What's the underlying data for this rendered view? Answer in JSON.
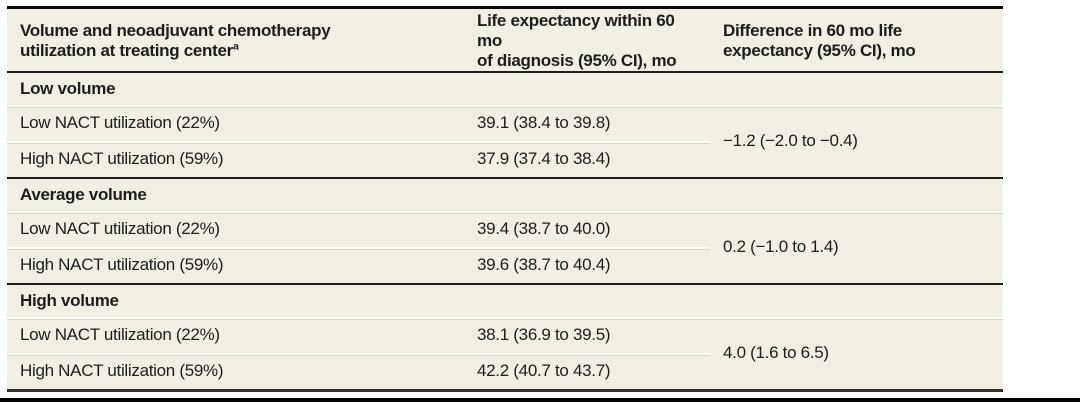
{
  "header": {
    "col1": {
      "line1": "Volume and neoadjuvant chemotherapy",
      "line2": "utilization at treating center",
      "footnote_marker": "a"
    },
    "col2": {
      "line1": "Life expectancy within 60 mo",
      "line2": "of diagnosis (95% CI), mo"
    },
    "col3": {
      "line1": "Difference in 60 mo life",
      "line2": "expectancy (95% CI), mo"
    }
  },
  "sections": [
    {
      "title": "Low volume",
      "rows": [
        {
          "label": "Low NACT utilization (22%)",
          "life_expectancy": "39.1 (38.4 to 39.8)"
        },
        {
          "label": "High NACT utilization (59%)",
          "life_expectancy": "37.9 (37.4 to 38.4)"
        }
      ],
      "difference": "−1.2 (−2.0 to −0.4)"
    },
    {
      "title": "Average volume",
      "rows": [
        {
          "label": "Low NACT utilization (22%)",
          "life_expectancy": "39.4 (38.7 to 40.0)"
        },
        {
          "label": "High NACT utilization (59%)",
          "life_expectancy": "39.6 (38.7 to 40.4)"
        }
      ],
      "difference": "0.2 (−1.0 to 1.4)"
    },
    {
      "title": "High volume",
      "rows": [
        {
          "label": "Low NACT utilization (22%)",
          "life_expectancy": "38.1 (36.9 to 39.5)"
        },
        {
          "label": "High NACT utilization (59%)",
          "life_expectancy": "42.2 (40.7 to 43.7)"
        }
      ],
      "difference": "4.0 (1.6 to 6.5)"
    }
  ],
  "colors": {
    "table_background": "#f1efe4",
    "rule_black": "#1f1f1d",
    "row_divider_light": "#fbfaf3",
    "row_divider_shadow": "#d7d5c8",
    "text": "#1d1d1b",
    "page_bottom_bar": "#050505"
  }
}
